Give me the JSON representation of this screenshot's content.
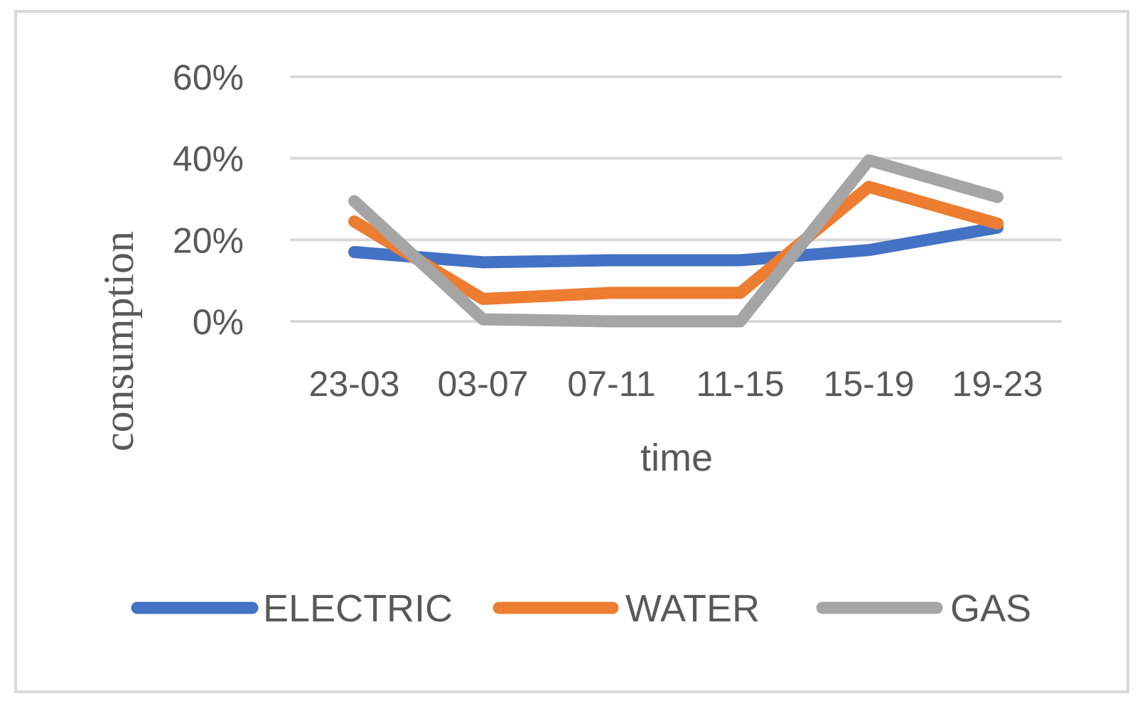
{
  "chart_data": {
    "type": "line",
    "categories": [
      "23-03",
      "03-07",
      "07-11",
      "11-15",
      "15-19",
      "19-23"
    ],
    "series": [
      {
        "name": "ELECTRIC",
        "color": "#4472C4",
        "values": [
          0.17,
          0.145,
          0.15,
          0.15,
          0.175,
          0.23
        ]
      },
      {
        "name": "WATER",
        "color": "#ED7D31",
        "values": [
          0.245,
          0.055,
          0.07,
          0.07,
          0.33,
          0.24
        ]
      },
      {
        "name": "GAS",
        "color": "#A5A5A5",
        "values": [
          0.295,
          0.005,
          0.0,
          0.0,
          0.395,
          0.305
        ]
      }
    ],
    "xlabel": "time",
    "ylabel": "consumption",
    "ylim": [
      0,
      0.6
    ],
    "yticks": [
      0,
      0.2,
      0.4,
      0.6
    ],
    "ytick_labels": [
      "0%",
      "20%",
      "40%",
      "60%"
    ],
    "grid": true,
    "legend": "bottom",
    "gridline_color": "#D9D9D9",
    "frame_color": "#D9D9D9"
  }
}
